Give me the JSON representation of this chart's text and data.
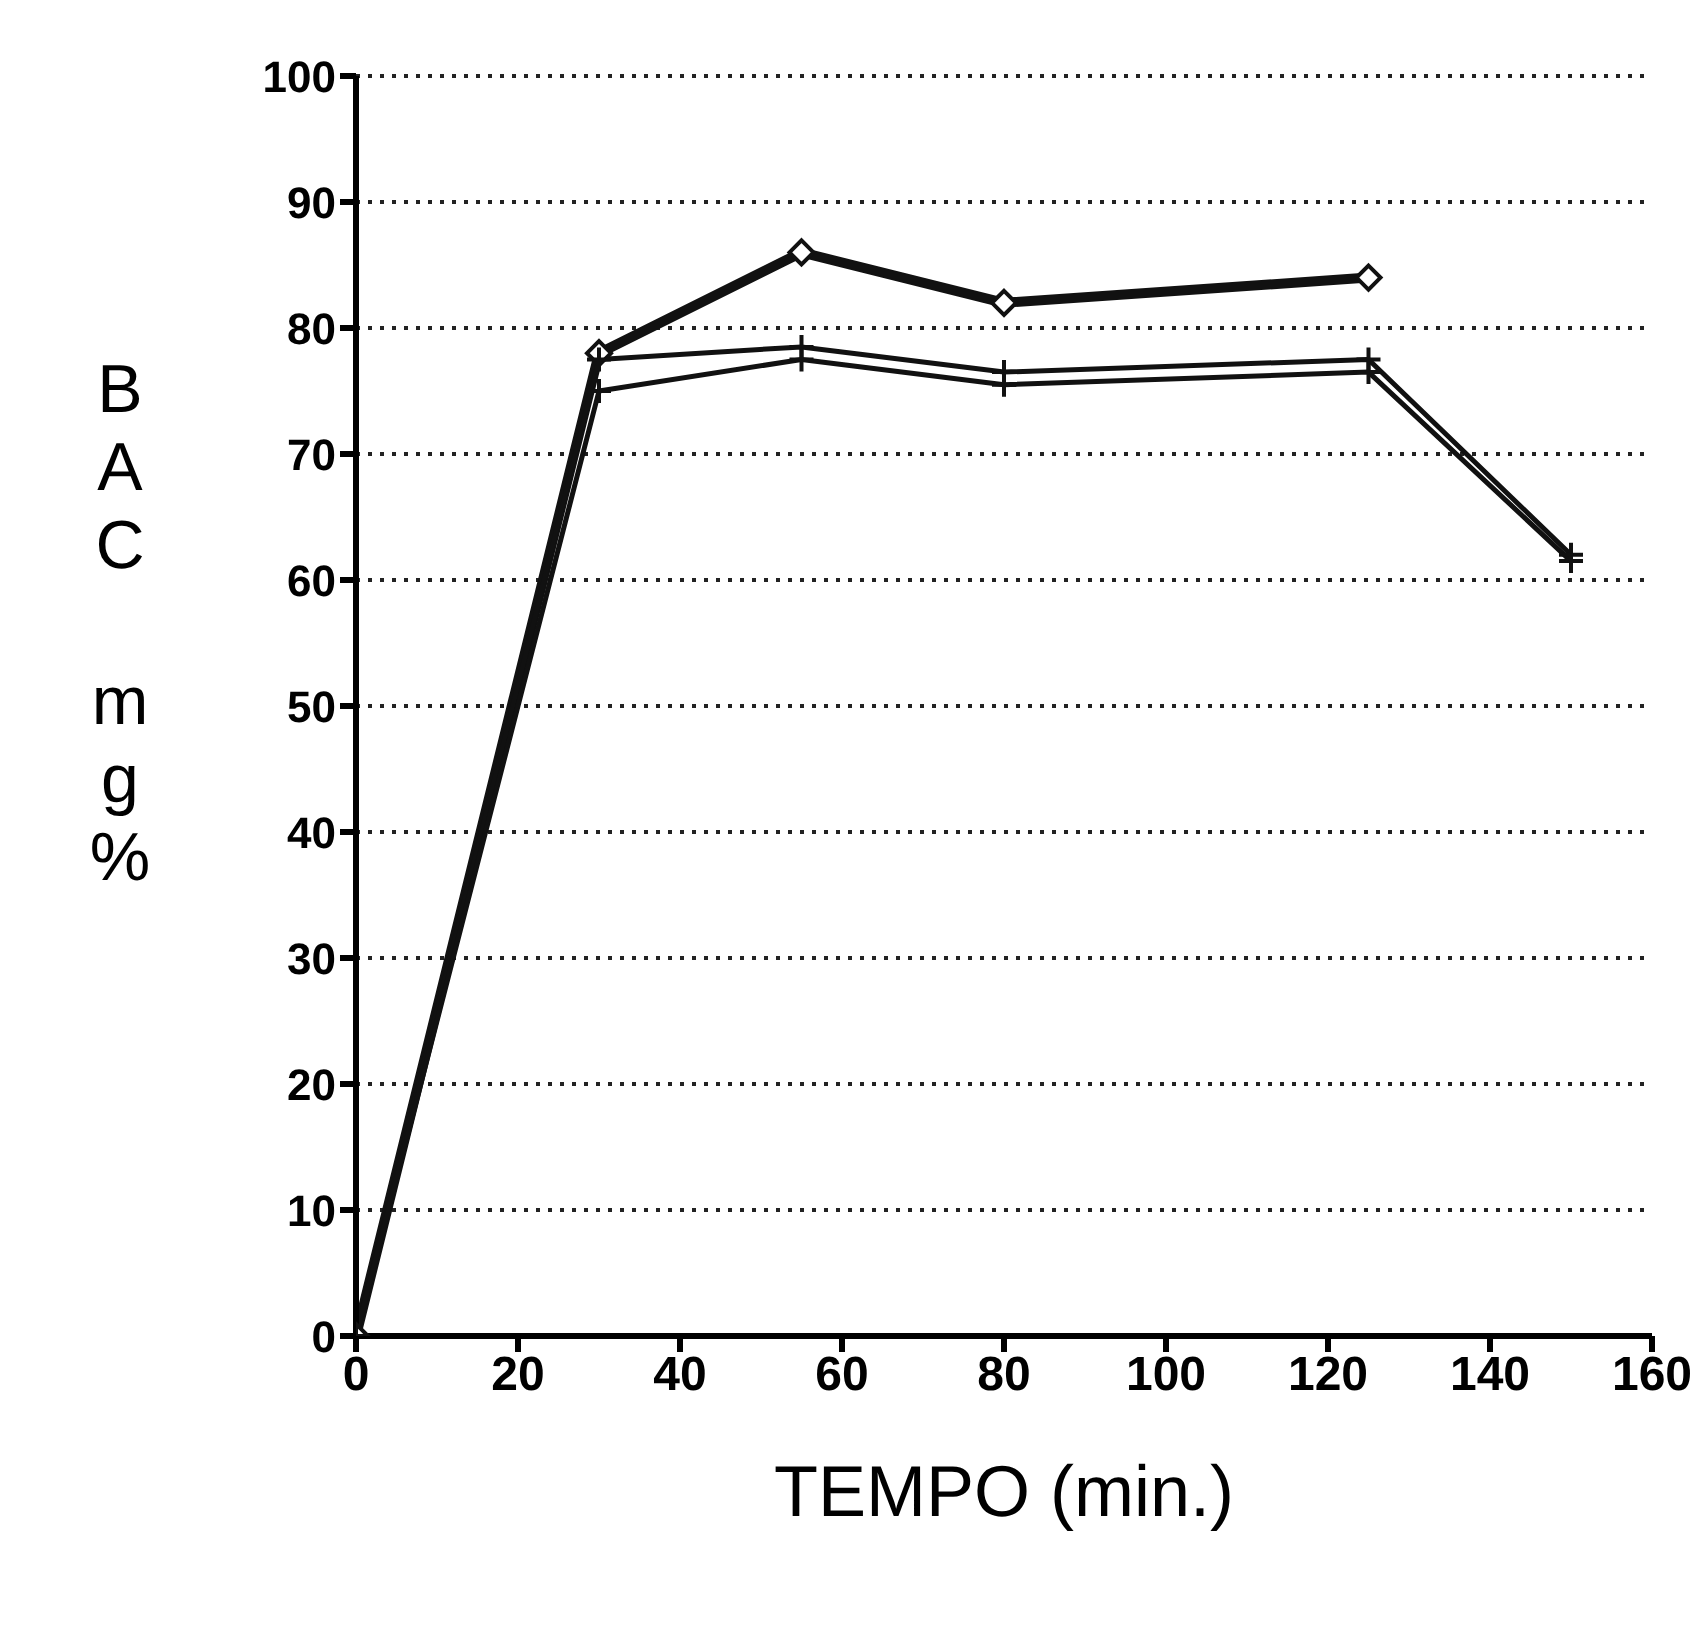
{
  "chart_data": {
    "type": "line",
    "xlabel": "TEMPO (min.)",
    "ylabel": "BAC mg%",
    "xlim": [
      0,
      160
    ],
    "xticks": [
      0,
      20,
      40,
      60,
      80,
      100,
      120,
      140,
      160
    ],
    "ylim": [
      0,
      100
    ],
    "yticks": [
      0,
      10,
      20,
      30,
      40,
      50,
      60,
      70,
      80,
      90,
      100
    ],
    "grid": "y",
    "series": [
      {
        "color": "#111111",
        "marker": "diamond",
        "x": [
          0,
          30,
          55,
          80,
          125
        ],
        "values": [
          0,
          78,
          86,
          82,
          84
        ]
      },
      {
        "color": "#111111",
        "marker": "cross",
        "x": [
          0,
          30,
          55,
          80,
          125,
          150
        ],
        "values": [
          0,
          77.5,
          78.5,
          76.5,
          77.5,
          62
        ]
      },
      {
        "color": "#111111",
        "marker": "cross",
        "x": [
          0,
          30,
          55,
          80,
          125,
          150
        ],
        "values": [
          0,
          75,
          77.5,
          75.5,
          76.5,
          61.5
        ]
      }
    ]
  }
}
